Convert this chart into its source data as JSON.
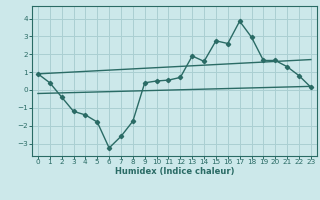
{
  "bg_color": "#cce8ea",
  "grid_color": "#aacfd2",
  "line_color": "#2a6b65",
  "xlabel": "Humidex (Indice chaleur)",
  "xlim": [
    -0.5,
    23.5
  ],
  "ylim": [
    -3.7,
    4.7
  ],
  "yticks": [
    -3,
    -2,
    -1,
    0,
    1,
    2,
    3,
    4
  ],
  "xticks": [
    0,
    1,
    2,
    3,
    4,
    5,
    6,
    7,
    8,
    9,
    10,
    11,
    12,
    13,
    14,
    15,
    16,
    17,
    18,
    19,
    20,
    21,
    22,
    23
  ],
  "series1_x": [
    0,
    1,
    2,
    3,
    4,
    5,
    6,
    7,
    8,
    9,
    10,
    11,
    12,
    13,
    14,
    15,
    16,
    17,
    18,
    19,
    20,
    21,
    22,
    23
  ],
  "series1_y": [
    0.9,
    0.4,
    -0.4,
    -1.2,
    -1.4,
    -1.8,
    -3.25,
    -2.6,
    -1.75,
    0.4,
    0.5,
    0.55,
    0.7,
    1.9,
    1.6,
    2.75,
    2.6,
    3.85,
    2.95,
    1.65,
    1.65,
    1.3,
    0.8,
    0.15
  ],
  "line2_x": [
    0,
    23
  ],
  "line2_y": [
    0.9,
    1.7
  ],
  "line3_x": [
    0,
    23
  ],
  "line3_y": [
    -0.2,
    0.2
  ]
}
